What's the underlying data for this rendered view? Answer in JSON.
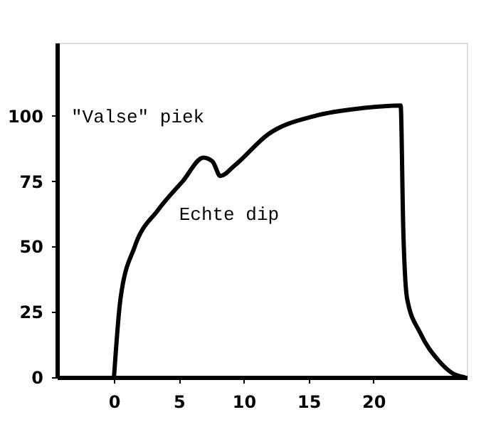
{
  "chart_data": {
    "type": "line",
    "x": [
      0,
      0.5,
      1.6,
      3.4,
      5.3,
      6.9,
      7.6,
      8.2,
      9.3,
      11.9,
      15.5,
      19.2,
      22.1,
      22.3,
      22.6,
      23.6,
      25,
      26.1,
      27
    ],
    "series": [
      {
        "color": "#000000",
        "values": [
          0,
          30,
          50,
          64,
          75,
          84,
          82.5,
          77,
          81,
          93,
          100,
          103,
          104,
          57,
          30,
          17,
          6.5,
          1.5,
          0
        ]
      }
    ],
    "annotations": [
      {
        "text": "\"Valse\" piek",
        "x": 6.9,
        "y": 84
      },
      {
        "text": "Echte dip",
        "x": 8.2,
        "y": 77
      }
    ],
    "xlim": [
      -4.4,
      27.2
    ],
    "ylim": [
      0,
      128
    ],
    "xticks": [
      0,
      5,
      10,
      15,
      20
    ],
    "yticks": [
      0,
      25,
      50,
      75,
      100
    ],
    "grid": false,
    "marker": "none",
    "line_style": "solid"
  }
}
